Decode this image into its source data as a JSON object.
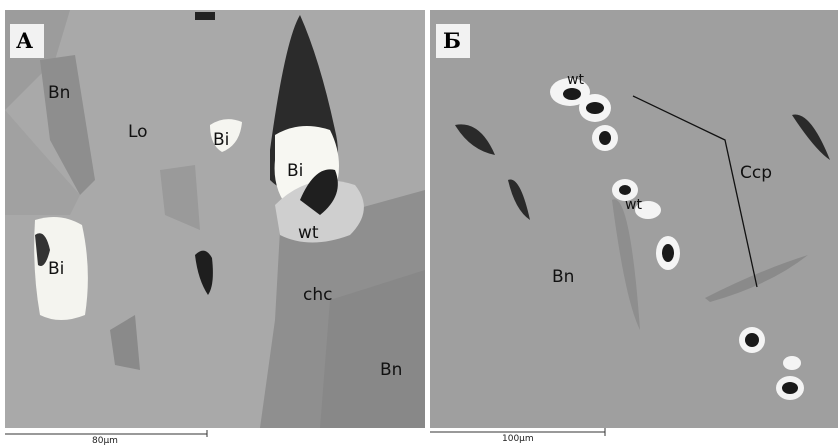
{
  "panels": [
    {
      "letter": "А",
      "labels": [
        "Bn",
        "Lo",
        "Bi",
        "Bi",
        "Bi",
        "wt",
        "chc",
        "Bn"
      ],
      "scale": "80µm"
    },
    {
      "letter": "Б",
      "labels": [
        "wt",
        "wt",
        "Ccp",
        "Bn"
      ],
      "scale": "100µm"
    }
  ]
}
